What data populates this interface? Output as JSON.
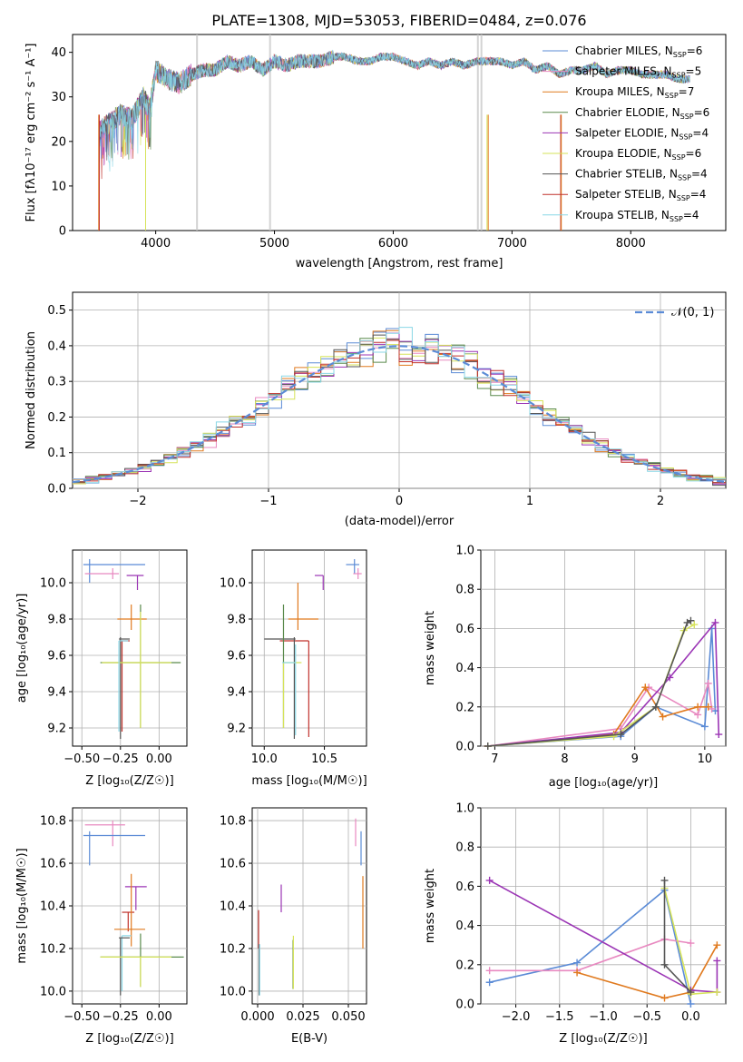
{
  "title": "PLATE=1308, MJD=53053, FIBERID=0484, z=0.076",
  "colors": {
    "Chabrier MILES": "#5b8bd6",
    "Salpeter MILES": "#e889c0",
    "Kroupa MILES": "#e07a1f",
    "Chabrier ELODIE": "#5a8a4c",
    "Salpeter ELODIE": "#9b35b5",
    "Kroupa ELODIE": "#d6e35a",
    "Chabrier STELIB": "#555555",
    "Salpeter STELIB": "#c0312b",
    "Kroupa STELIB": "#8ad7e6"
  },
  "panels": {
    "spectrum": {
      "xlabel": "wavelength [Angstrom, rest frame]",
      "ylabel": "Flux [fλ10⁻¹⁷ erg cm⁻² s⁻¹ A⁻¹]",
      "xticks": [
        "4000",
        "5000",
        "6000",
        "7000",
        "8000"
      ],
      "yticks": [
        "0",
        "10",
        "20",
        "30",
        "40"
      ],
      "legend": [
        {
          "name": "Chabrier MILES",
          "text": "Chabrier MILES, N",
          "sub": "SSP",
          "tail": "=6"
        },
        {
          "name": "Salpeter MILES",
          "text": "Salpeter MILES, N",
          "sub": "SSP",
          "tail": "=5"
        },
        {
          "name": "Kroupa MILES",
          "text": "Kroupa MILES, N",
          "sub": "SSP",
          "tail": "=7"
        },
        {
          "name": "Chabrier ELODIE",
          "text": "Chabrier ELODIE, N",
          "sub": "SSP",
          "tail": "=6"
        },
        {
          "name": "Salpeter ELODIE",
          "text": "Salpeter ELODIE, N",
          "sub": "SSP",
          "tail": "=4"
        },
        {
          "name": "Kroupa ELODIE",
          "text": "Kroupa ELODIE, N",
          "sub": "SSP",
          "tail": "=6"
        },
        {
          "name": "Chabrier STELIB",
          "text": "Chabrier STELIB, N",
          "sub": "SSP",
          "tail": "=4"
        },
        {
          "name": "Salpeter STELIB",
          "text": "Salpeter STELIB, N",
          "sub": "SSP",
          "tail": "=4"
        },
        {
          "name": "Kroupa STELIB",
          "text": "Kroupa STELIB, N",
          "sub": "SSP",
          "tail": "=4"
        }
      ]
    },
    "residuals": {
      "xlabel": "(data-model)/error",
      "ylabel": "Normed distribution",
      "xticks": [
        "−2",
        "−1",
        "0",
        "1",
        "2"
      ],
      "yticks": [
        "0.0",
        "0.1",
        "0.2",
        "0.3",
        "0.4",
        "0.5"
      ],
      "legend": "𝒩(0, 1)"
    },
    "age_z": {
      "xlabel": "Z [log₁₀(Z/Z☉)]",
      "ylabel": "age  [log₁₀(age/yr)]",
      "xticks": [
        "−0.50",
        "−0.25",
        "0.00"
      ],
      "yticks": [
        "9.2",
        "9.4",
        "9.6",
        "9.8",
        "10.0"
      ]
    },
    "age_mass": {
      "xlabel": "mass [log₁₀(M/M☉)]",
      "xticks": [
        "10.0",
        "10.5"
      ],
      "yticks": [
        "9.2",
        "9.4",
        "9.6",
        "9.8",
        "10.0"
      ]
    },
    "mw_age": {
      "xlabel": "age  [log₁₀(age/yr)]",
      "ylabel": "mass weight",
      "xticks": [
        "7",
        "8",
        "9",
        "10"
      ],
      "yticks": [
        "0.0",
        "0.2",
        "0.4",
        "0.6",
        "0.8",
        "1.0"
      ]
    },
    "mass_z": {
      "xlabel": "Z [log₁₀(Z/Z☉)]",
      "ylabel": "mass [log₁₀(M/M☉)]",
      "xticks": [
        "−0.50",
        "−0.25",
        "0.00"
      ],
      "yticks": [
        "10.0",
        "10.2",
        "10.4",
        "10.6",
        "10.8"
      ]
    },
    "mass_ebv": {
      "xlabel": "E(B-V)",
      "xticks": [
        "0.000",
        "0.025",
        "0.050"
      ],
      "yticks": [
        "10.0",
        "10.2",
        "10.4",
        "10.6",
        "10.8"
      ]
    },
    "mw_z": {
      "xlabel": "Z [log₁₀(Z/Z☉)]",
      "ylabel": "mass weight",
      "xticks": [
        "−2.0",
        "−1.5",
        "−1.0",
        "−0.5",
        "0.0"
      ],
      "yticks": [
        "0.0",
        "0.2",
        "0.4",
        "0.6",
        "0.8",
        "1.0"
      ]
    }
  },
  "chart_data": [
    {
      "type": "line",
      "panel": "spectrum",
      "title": "PLATE=1308, MJD=53053, FIBERID=0484, z=0.076",
      "xlim": [
        3300,
        8800
      ],
      "ylim": [
        0,
        44
      ],
      "x": [
        3520,
        3600,
        3700,
        3800,
        3900,
        3950,
        4000,
        4100,
        4200,
        4300,
        4400,
        4500,
        4600,
        4700,
        4800,
        4900,
        5000,
        5100,
        5200,
        5300,
        5400,
        5500,
        5600,
        5700,
        5800,
        5900,
        6000,
        6100,
        6200,
        6300,
        6400,
        6500,
        6600,
        6700,
        6800,
        6900,
        7000,
        7100,
        7200,
        7300,
        7400,
        7500,
        7600,
        7700,
        7800,
        7900,
        8000,
        8100,
        8200,
        8300,
        8400,
        8500
      ],
      "series": [
        {
          "name": "Chabrier MILES",
          "values": [
            22,
            24,
            26,
            25,
            30,
            27,
            36,
            34,
            33,
            35,
            36,
            36,
            38,
            37,
            38,
            36,
            38,
            37,
            38,
            38,
            38,
            39,
            39,
            38,
            38,
            39,
            39,
            38,
            37,
            38,
            37,
            38,
            37,
            38,
            38,
            38,
            37,
            38,
            36,
            37,
            35,
            36,
            36,
            37,
            35,
            36,
            36,
            35,
            35,
            35,
            34,
            34
          ]
        },
        {
          "name": "Salpeter MILES",
          "values": [
            22,
            24,
            25,
            25,
            29,
            27,
            37,
            34,
            33,
            35,
            36,
            36,
            38,
            37,
            38,
            36,
            38,
            37,
            38,
            38,
            39,
            39,
            39,
            38,
            38,
            39,
            39,
            38,
            37,
            38,
            37,
            38,
            37,
            38,
            38,
            38,
            37,
            38,
            36,
            37,
            35,
            36,
            36,
            37,
            35,
            36,
            36,
            35,
            35,
            35,
            34,
            34
          ]
        }
      ]
    },
    {
      "type": "line",
      "panel": "residuals",
      "xlim": [
        -2.5,
        2.5
      ],
      "ylim": [
        0,
        0.55
      ],
      "series": [
        {
          "name": "𝒩(0, 1)",
          "function": "normal pdf, mean 0, sigma 1"
        }
      ]
    },
    {
      "type": "scatter",
      "panel": "mw_age",
      "xlim": [
        6.8,
        10.3
      ],
      "ylim": [
        0,
        1
      ],
      "series": [
        {
          "name": "Chabrier MILES",
          "x": [
            6.9,
            8.8,
            9.3,
            10.0,
            10.1,
            10.15
          ],
          "y": [
            0.0,
            0.05,
            0.2,
            0.1,
            0.6,
            0.18
          ]
        },
        {
          "name": "Salpeter MILES",
          "x": [
            6.9,
            8.8,
            9.2,
            9.9,
            10.05,
            10.1
          ],
          "y": [
            0.0,
            0.09,
            0.3,
            0.16,
            0.32,
            0.19
          ]
        },
        {
          "name": "Kroupa MILES",
          "x": [
            6.9,
            8.7,
            9.15,
            9.4,
            9.9,
            10.05
          ],
          "y": [
            0.0,
            0.06,
            0.3,
            0.15,
            0.2,
            0.2
          ]
        },
        {
          "name": "Salpeter ELODIE",
          "x": [
            6.9,
            8.8,
            9.5,
            10.15,
            10.2
          ],
          "y": [
            0.0,
            0.07,
            0.35,
            0.63,
            0.06
          ]
        },
        {
          "name": "Kroupa ELODIE",
          "x": [
            6.9,
            8.7,
            9.3,
            9.7,
            9.85
          ],
          "y": [
            0.0,
            0.05,
            0.2,
            0.59,
            0.62
          ]
        },
        {
          "name": "Chabrier STELIB",
          "x": [
            6.9,
            8.8,
            9.3,
            9.75,
            9.8
          ],
          "y": [
            0.0,
            0.06,
            0.2,
            0.63,
            0.64
          ]
        }
      ]
    },
    {
      "type": "scatter",
      "panel": "mw_z",
      "xlim": [
        -2.4,
        0.4
      ],
      "ylim": [
        0,
        1
      ],
      "series": [
        {
          "name": "Chabrier MILES",
          "x": [
            -2.3,
            -1.3,
            -0.3,
            0.0
          ],
          "y": [
            0.11,
            0.21,
            0.58,
            0.0
          ]
        },
        {
          "name": "Salpeter MILES",
          "x": [
            -2.3,
            -1.3,
            -0.3,
            0.0
          ],
          "y": [
            0.17,
            0.17,
            0.33,
            0.31
          ]
        },
        {
          "name": "Kroupa MILES",
          "x": [
            -1.3,
            -0.3,
            0.0,
            0.3
          ],
          "y": [
            0.16,
            0.03,
            0.06,
            0.3
          ]
        },
        {
          "name": "Salpeter ELODIE",
          "x": [
            -2.3,
            0.0,
            0.3,
            0.3
          ],
          "y": [
            0.63,
            0.07,
            0.06,
            0.22
          ]
        },
        {
          "name": "Kroupa ELODIE",
          "x": [
            -0.3,
            0.0,
            0.3
          ],
          "y": [
            0.59,
            0.05,
            0.06
          ]
        },
        {
          "name": "Chabrier STELIB",
          "x": [
            -0.3,
            -0.3,
            0.0
          ],
          "y": [
            0.63,
            0.2,
            0.06
          ]
        }
      ]
    }
  ]
}
